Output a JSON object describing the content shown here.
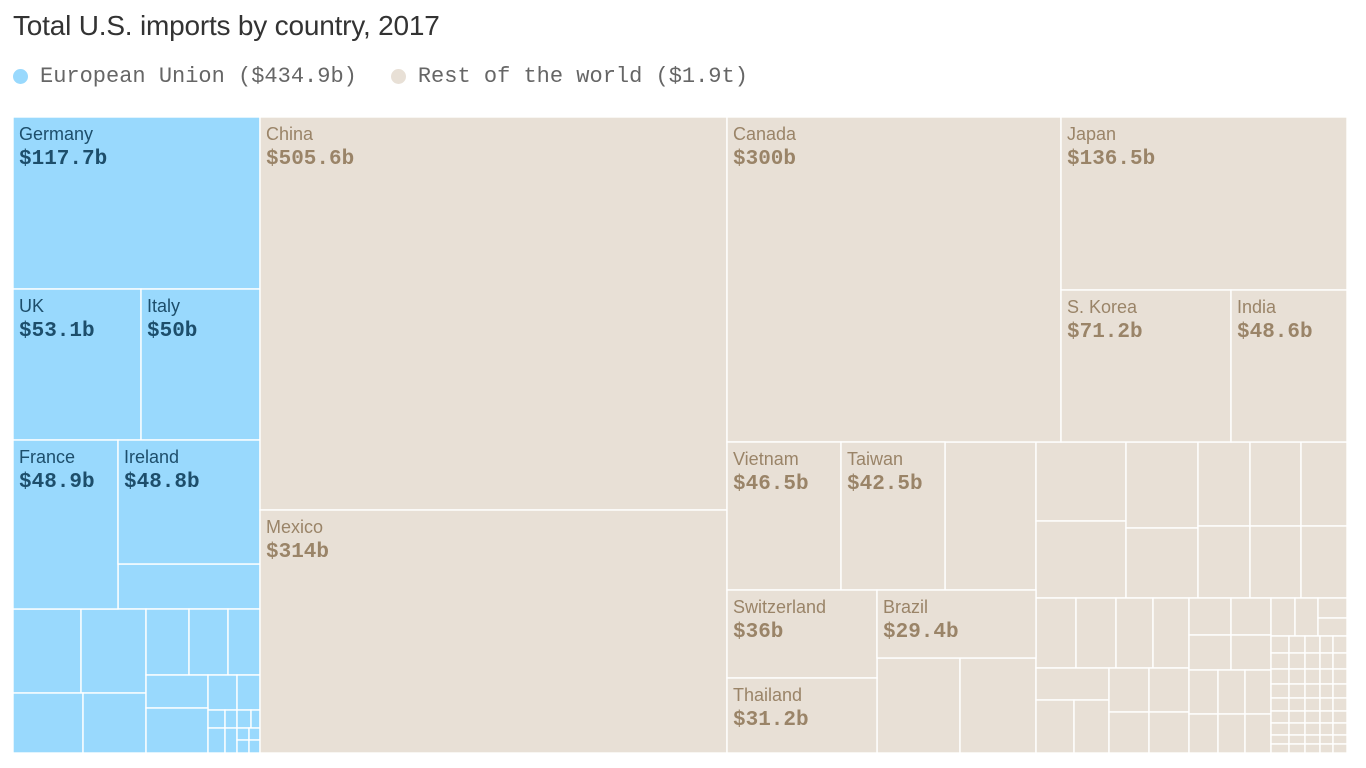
{
  "title": "Total U.S. imports by country, 2017",
  "legend": [
    {
      "label": "European Union ($434.9b)",
      "color": "#99d9fd"
    },
    {
      "label": "Rest of the world ($1.9t)",
      "color": "#e8e0d6"
    }
  ],
  "colors": {
    "eu_fill": "#99d9fd",
    "eu_text": "#1d4e6b",
    "row_fill": "#e8e0d6",
    "row_text": "#9a8468",
    "border": "#ffffff"
  },
  "chart_data": {
    "type": "treemap",
    "title": "Total U.S. imports by country, 2017",
    "groups": [
      {
        "name": "European Union ($434.9b)",
        "total_billion": 434.9,
        "items": [
          {
            "name": "Germany",
            "label": "$117.7b",
            "value": 117.7
          },
          {
            "name": "UK",
            "label": "$53.1b",
            "value": 53.1
          },
          {
            "name": "Italy",
            "label": "$50b",
            "value": 50
          },
          {
            "name": "France",
            "label": "$48.9b",
            "value": 48.9
          },
          {
            "name": "Ireland",
            "label": "$48.8b",
            "value": 48.8
          }
        ]
      },
      {
        "name": "Rest of the world ($1.9t)",
        "total_billion": 1900,
        "items": [
          {
            "name": "China",
            "label": "$505.6b",
            "value": 505.6
          },
          {
            "name": "Mexico",
            "label": "$314b",
            "value": 314
          },
          {
            "name": "Canada",
            "label": "$300b",
            "value": 300
          },
          {
            "name": "Japan",
            "label": "$136.5b",
            "value": 136.5
          },
          {
            "name": "S. Korea",
            "label": "$71.2b",
            "value": 71.2
          },
          {
            "name": "India",
            "label": "$48.6b",
            "value": 48.6
          },
          {
            "name": "Vietnam",
            "label": "$46.5b",
            "value": 46.5
          },
          {
            "name": "Taiwan",
            "label": "$42.5b",
            "value": 42.5
          },
          {
            "name": "Switzerland",
            "label": "$36b",
            "value": 36
          },
          {
            "name": "Brazil",
            "label": "$29.4b",
            "value": 29.4
          },
          {
            "name": "Thailand",
            "label": "$31.2b",
            "value": 31.2
          }
        ]
      }
    ]
  }
}
